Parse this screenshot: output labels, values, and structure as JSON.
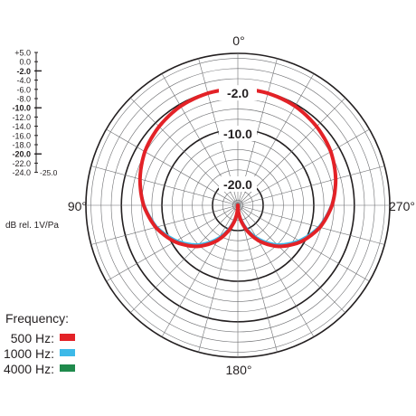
{
  "chart_data": {
    "type": "polar",
    "angle_labels": {
      "top": "0°",
      "right": "270°",
      "bottom": "180°",
      "left": "90°"
    },
    "ring_labels": [
      "-2.0",
      "-10.0",
      "-20.0"
    ],
    "r_axis": {
      "range_db": [
        -25,
        5
      ],
      "ticks": [
        "+5.0",
        "0.0",
        "-2.0",
        "-4.0",
        "-6.0",
        "-8.0",
        "-10.0",
        "-12.0",
        "-14.0",
        "-16.0",
        "-18.0",
        "-20.0",
        "-22.0",
        "-24.0",
        "-25.0"
      ],
      "bold_ticks": [
        "-2.0",
        "-10.0",
        "-20.0"
      ],
      "unit_label": "dB rel. 1V/Pa"
    },
    "legend_title": "Frequency:",
    "series": [
      {
        "name": "500 Hz:",
        "color": "#e32227",
        "theta_deg": [
          0,
          15,
          30,
          45,
          60,
          75,
          90,
          105,
          120,
          135,
          150,
          165,
          180
        ],
        "db": [
          -2.0,
          -2.1,
          -2.4,
          -3.0,
          -3.8,
          -5.0,
          -6.4,
          -8.2,
          -10.6,
          -13.5,
          -17.0,
          -21.0,
          -25.0
        ]
      },
      {
        "name": "1000 Hz:",
        "color": "#3db9e8",
        "theta_deg": [
          0,
          15,
          30,
          45,
          60,
          75,
          90,
          105,
          120,
          135,
          150,
          165,
          180
        ],
        "db": [
          -2.0,
          -2.1,
          -2.4,
          -3.0,
          -3.8,
          -5.0,
          -6.5,
          -8.4,
          -11.0,
          -14.0,
          -17.6,
          -21.5,
          -25.0
        ]
      },
      {
        "name": "4000 Hz:",
        "color": "#1f8a4c",
        "theta_deg": [
          0,
          15,
          30,
          45,
          60,
          75,
          90,
          105,
          120,
          135,
          150,
          165,
          180
        ],
        "db": [
          -2.0,
          -2.1,
          -2.4,
          -3.0,
          -3.8,
          -5.0,
          -6.4,
          -8.2,
          -10.7,
          -13.6,
          -17.2,
          -21.2,
          -25.0
        ]
      }
    ]
  }
}
